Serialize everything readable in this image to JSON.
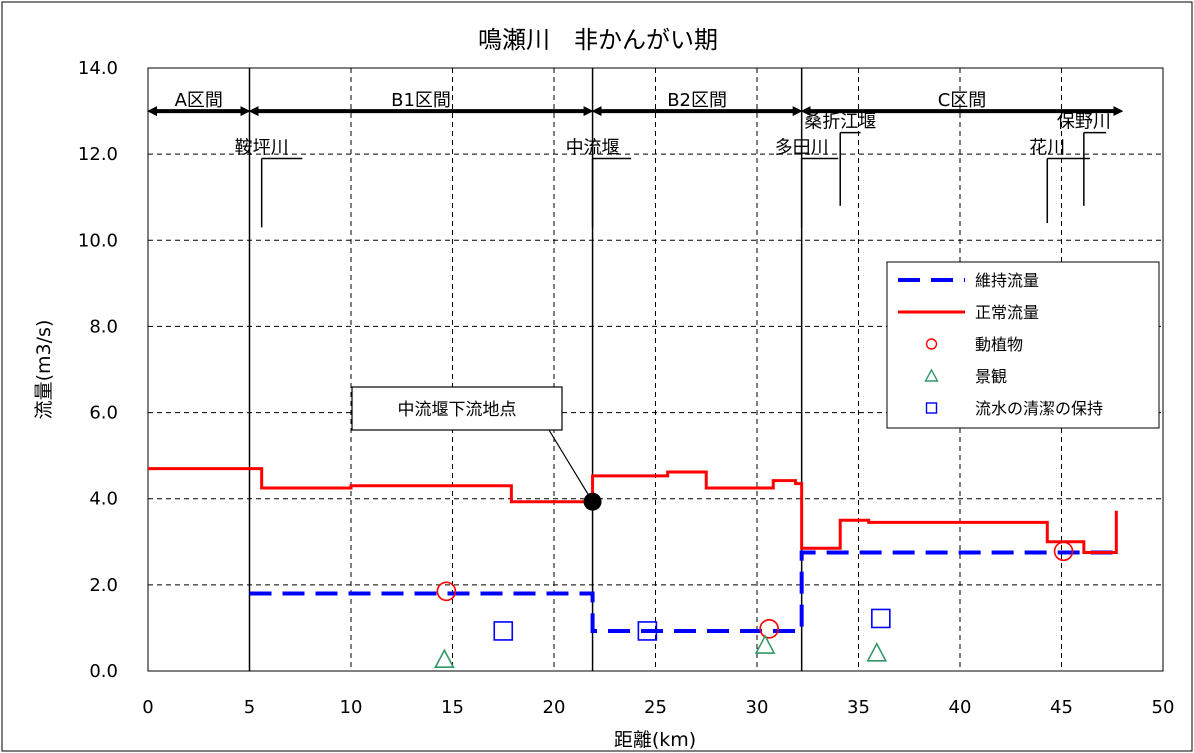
{
  "chart_data": {
    "type": "line",
    "title": "鳴瀬川　非かんがい期",
    "xlabel": "距離(km)",
    "ylabel": "流量(m3/s)",
    "xlim": [
      0,
      50
    ],
    "ylim": [
      0,
      14
    ],
    "x_ticks": [
      "0",
      "5",
      "10",
      "15",
      "20",
      "25",
      "30",
      "35",
      "40",
      "45",
      "50"
    ],
    "y_ticks": [
      "0.0",
      "2.0",
      "4.0",
      "6.0",
      "8.0",
      "10.0",
      "12.0",
      "14.0"
    ],
    "grid": true,
    "legend_position": "right",
    "sections": [
      {
        "label": "A区間",
        "from": 0,
        "to": 5
      },
      {
        "label": "B1区間",
        "from": 5,
        "to": 21.9
      },
      {
        "label": "B2区間",
        "from": 21.9,
        "to": 32.2
      },
      {
        "label": "C区間",
        "from": 32.2,
        "to": 48
      }
    ],
    "section_boundaries": [
      5,
      21.9,
      32.2
    ],
    "tributaries": [
      {
        "name": "鞍坪川",
        "x": 5.6,
        "line_top": 11.9,
        "line_bottom": 10.3,
        "bar_to": 7.6
      },
      {
        "name": "中流堰",
        "x": 21.9,
        "line_top": 11.9,
        "line_bottom": 10.3,
        "bar_to": 23.8
      },
      {
        "name": "多田川",
        "x": 32.2,
        "line_top": 11.9,
        "line_bottom": 10.3,
        "bar_to": 34.0
      },
      {
        "name": "桑折江堰",
        "x": 34.1,
        "line_top": 12.5,
        "line_bottom": 10.8,
        "bar_to": 35.1
      },
      {
        "name": "花川",
        "x": 44.3,
        "line_top": 11.9,
        "line_bottom": 10.4,
        "bar_to": 46.4
      },
      {
        "name": "保野川",
        "x": 46.1,
        "line_top": 12.5,
        "line_bottom": 10.8,
        "bar_to": 47.2
      }
    ],
    "series": [
      {
        "name": "維持流量",
        "color": "#0000ff",
        "style": "dashed",
        "x": [
          5,
          21.9,
          21.9,
          32.2,
          32.2,
          47.7
        ],
        "y": [
          1.8,
          1.8,
          0.93,
          0.93,
          2.75,
          2.75
        ]
      },
      {
        "name": "正常流量",
        "color": "#ff0000",
        "style": "solid",
        "x": [
          0,
          5.6,
          5.6,
          10,
          10,
          17.9,
          17.9,
          21.9,
          21.9,
          25.6,
          25.6,
          27.5,
          27.5,
          30.8,
          30.8,
          31.9,
          31.9,
          32.2,
          32.2,
          34.1,
          34.1,
          35.5,
          35.5,
          44.3,
          44.3,
          46.1,
          46.1,
          47.3,
          47.3,
          47.7,
          47.7
        ],
        "y": [
          4.7,
          4.7,
          4.25,
          4.25,
          4.3,
          4.3,
          3.93,
          3.93,
          4.53,
          4.53,
          4.62,
          4.62,
          4.25,
          4.25,
          4.42,
          4.42,
          4.35,
          4.35,
          2.85,
          2.85,
          3.5,
          3.5,
          3.45,
          3.45,
          3.0,
          3.0,
          2.75,
          2.75,
          2.75,
          2.75,
          3.72
        ]
      },
      {
        "name": "動植物",
        "color": "#ff0000",
        "marker": "circle",
        "x": [
          14.7,
          30.6,
          45.1
        ],
        "y": [
          1.85,
          0.98,
          2.78
        ]
      },
      {
        "name": "景観",
        "color": "#339966",
        "marker": "triangle",
        "x": [
          14.6,
          30.4,
          35.9
        ],
        "y": [
          0.25,
          0.58,
          0.4
        ]
      },
      {
        "name": "流水の清潔の保持",
        "color": "#0000ff",
        "marker": "square",
        "x": [
          17.5,
          24.6,
          36.1
        ],
        "y": [
          0.93,
          0.93,
          1.22
        ]
      }
    ],
    "annotation": {
      "text": "中流堰下流地点",
      "x": 21.9,
      "y": 3.93
    }
  }
}
